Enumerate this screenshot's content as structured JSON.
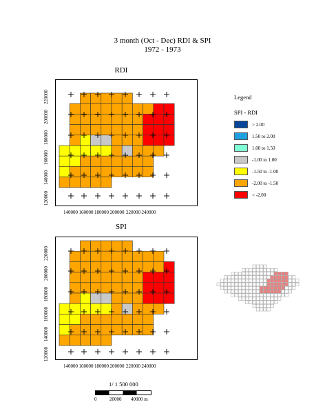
{
  "title": {
    "line1": "3 month (Oct - Dec) RDI & SPI",
    "line2": "1972 - 1973"
  },
  "maps": [
    {
      "id": "rdi",
      "title": "RDI",
      "grid": [
        "..OOOOO....",
        ".OOOOOOOORR",
        ".OOOOOOORRR",
        ".OOOOOOORRR",
        ".OYGGOOORRR",
        "YYYYYOGOOO.",
        "YYOOOOOOO..",
        "YOOOOOOOO..",
        "OOOOO......"
      ]
    },
    {
      "id": "spi",
      "title": "SPI",
      "grid": [
        "..OOOOO....",
        ".OOOOOOOOO.",
        ".OOOOOOOOOR",
        ".OOOOOOORRR",
        ".OOOOOOORRR",
        ".OYGGOOORRR",
        "YYYYYOGOOO.",
        "YYOOOOOOO..",
        "YOOOOOOOO..",
        "OOOOO......"
      ]
    }
  ],
  "axes": {
    "x_ticks": [
      "140000",
      "160000",
      "180000",
      "200000",
      "220000",
      "240000"
    ],
    "y_ticks": [
      "120000",
      "140000",
      "160000",
      "180000",
      "200000",
      "220000"
    ]
  },
  "legend": {
    "title": "Legend",
    "subtitle": "SPI - RDI",
    "items": [
      {
        "label": "> 2.00",
        "color": "#08469c"
      },
      {
        "label": "1.50 to 2.00",
        "color": "#1e9fe0"
      },
      {
        "label": "1.00 to 1.50",
        "color": "#7fffd4"
      },
      {
        "label": "-1.00 to 1.00",
        "color": "#c8c8c8"
      },
      {
        "label": "-1.50 to -1.00",
        "color": "#ffff00"
      },
      {
        "label": "-2.00 to -1.50",
        "color": "#ffa500"
      },
      {
        "label": "< -2.00",
        "color": "#ff0000"
      }
    ]
  },
  "class_colors": {
    "R": "#ff0000",
    "O": "#ffa500",
    "Y": "#ffff00",
    "G": "#c8c8c8"
  },
  "scale": {
    "ratio": "1/ 1 500 000",
    "labels": [
      "0",
      "20000",
      "40000 m"
    ]
  }
}
